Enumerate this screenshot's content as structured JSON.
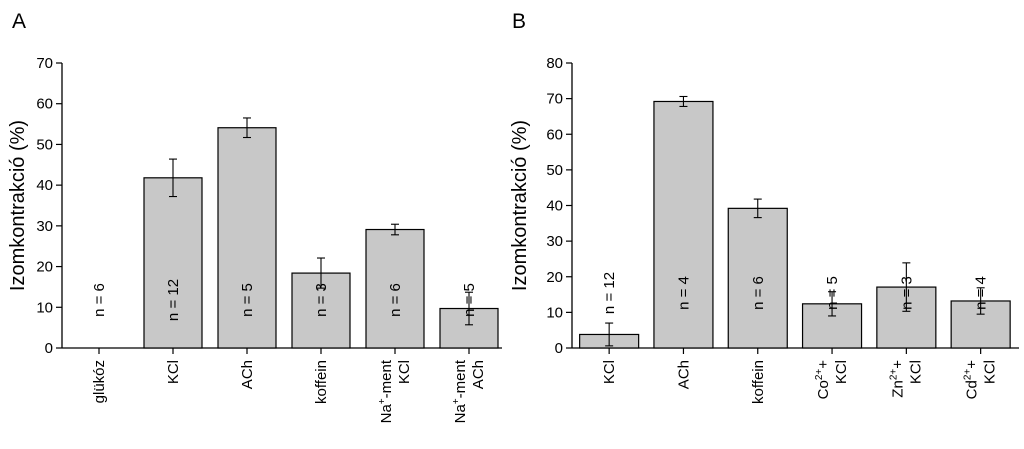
{
  "chart_data": [
    {
      "panel": "A",
      "type": "bar",
      "ylabel": "Izomkontrakció (%)",
      "ylim": [
        0,
        70
      ],
      "yticks": [
        0,
        10,
        20,
        30,
        40,
        50,
        60,
        70
      ],
      "categories": [
        {
          "lines": [
            {
              "text": "glükóz"
            }
          ]
        },
        {
          "lines": [
            {
              "text": "KCl"
            }
          ]
        },
        {
          "lines": [
            {
              "text": "ACh"
            }
          ]
        },
        {
          "lines": [
            {
              "text": "koffein"
            }
          ]
        },
        {
          "lines": [
            {
              "text": "Na",
              "sup": "+",
              "rest": "-ment"
            },
            {
              "text": "KCl"
            }
          ]
        },
        {
          "lines": [
            {
              "text": "Na",
              "sup": "+",
              "rest": "-ment"
            },
            {
              "text": "ACh"
            }
          ]
        }
      ],
      "values": [
        0,
        41.8,
        54.1,
        18.4,
        29.1,
        9.7
      ],
      "errors": [
        0,
        4.6,
        2.4,
        3.7,
        1.3,
        4.0
      ],
      "n_labels": [
        "n = 6",
        "n = 12",
        "n = 5",
        "n = 3",
        "n = 6",
        "n = 5"
      ]
    },
    {
      "panel": "B",
      "type": "bar",
      "ylabel": "Izomkontrakció (%)",
      "ylim": [
        0,
        80
      ],
      "yticks": [
        0,
        10,
        20,
        30,
        40,
        50,
        60,
        70,
        80
      ],
      "categories": [
        {
          "lines": [
            {
              "text": "KCl"
            }
          ]
        },
        {
          "lines": [
            {
              "text": "ACh"
            }
          ]
        },
        {
          "lines": [
            {
              "text": "koffein"
            }
          ]
        },
        {
          "lines": [
            {
              "text": "Co",
              "sup": "2+",
              "rest": "+"
            },
            {
              "text": "KCl"
            }
          ]
        },
        {
          "lines": [
            {
              "text": "Zn",
              "sup": "2+",
              "rest": "+"
            },
            {
              "text": "KCl"
            }
          ]
        },
        {
          "lines": [
            {
              "text": "Cd",
              "sup": "2+",
              "rest": "+"
            },
            {
              "text": "KCl"
            }
          ]
        }
      ],
      "values": [
        3.8,
        69.2,
        39.2,
        12.4,
        17.1,
        13.2
      ],
      "errors": [
        3.2,
        1.4,
        2.6,
        3.4,
        6.8,
        3.7
      ],
      "n_labels": [
        "n = 12",
        "n = 4",
        "n = 6",
        "n = 5",
        "n = 3",
        "n = 4"
      ]
    }
  ]
}
